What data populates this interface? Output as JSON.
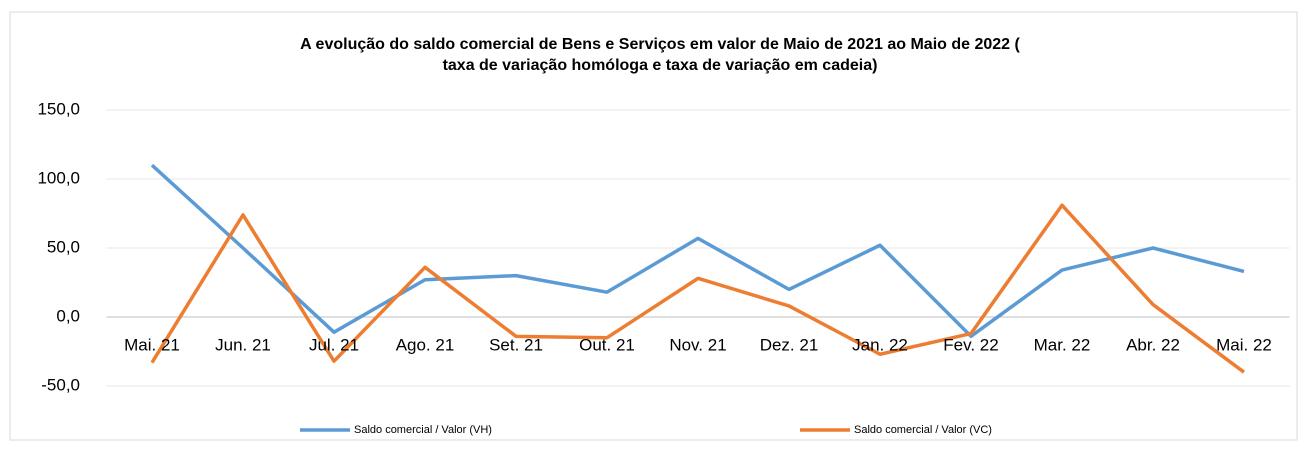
{
  "chart_data": {
    "type": "line",
    "title": "A evolução do saldo comercial de Bens e Serviços em valor de Maio de 2021 ao Maio de 2022 (",
    "subtitle": "taxa de variação homóloga e taxa de variação em cadeia)",
    "categories": [
      "Mai. 21",
      "Jun. 21",
      "Jul. 21",
      "Ago. 21",
      "Set. 21",
      "Out. 21",
      "Nov. 21",
      "Dez. 21",
      "Jan. 22",
      "Fev. 22",
      "Mar. 22",
      "Abr. 22",
      "Mai. 22"
    ],
    "series": [
      {
        "name": "Saldo comercial / Valor (VH)",
        "color": "#5b9bd5",
        "values": [
          110,
          50,
          -11,
          27,
          30,
          18,
          57,
          20,
          52,
          -14,
          34,
          50,
          33
        ]
      },
      {
        "name": "Saldo comercial / Valor (VC)",
        "color": "#ed7d31",
        "values": [
          -33,
          74,
          -32,
          36,
          -14,
          -15,
          28,
          8,
          -27,
          -12,
          81,
          9,
          -40
        ]
      }
    ],
    "ylim": [
      -50,
      150
    ],
    "yticks": [
      {
        "value": -50,
        "label": "-50,0"
      },
      {
        "value": 0,
        "label": "0,0"
      },
      {
        "value": 50,
        "label": "50,0"
      },
      {
        "value": 100,
        "label": "100,0"
      },
      {
        "value": 150,
        "label": "150,0"
      }
    ],
    "grid": true,
    "legend": "bottom"
  }
}
